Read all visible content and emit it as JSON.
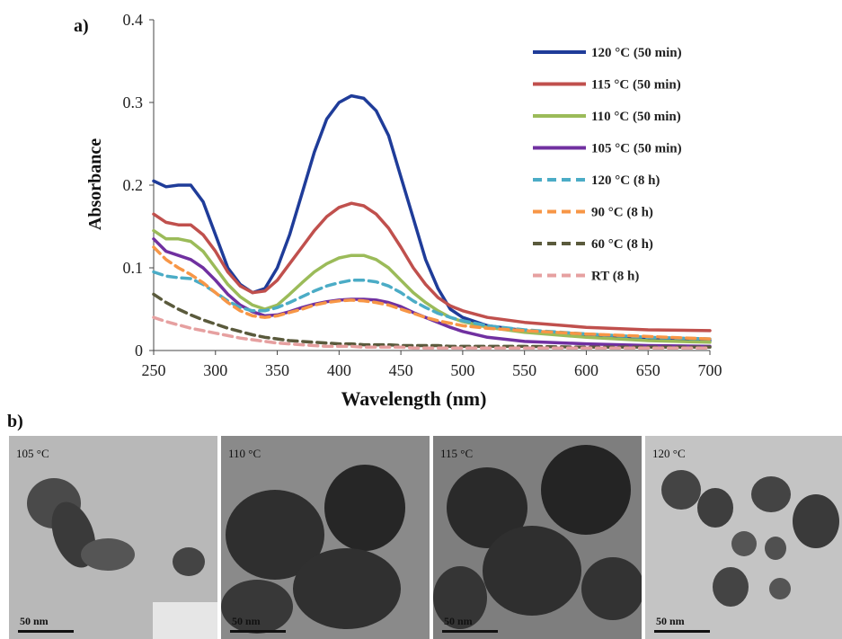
{
  "panel_a_label": "a)",
  "panel_b_label": "b)",
  "chart_data": {
    "type": "line",
    "title": "",
    "xlabel": "Wavelength (nm)",
    "ylabel": "Absorbance",
    "xlim": [
      250,
      700
    ],
    "ylim": [
      0,
      0.4
    ],
    "xticks": [
      250,
      300,
      350,
      400,
      450,
      500,
      550,
      600,
      650,
      700
    ],
    "yticks": [
      0,
      0.1,
      0.2,
      0.3,
      0.4
    ],
    "ytick_labels": [
      "0",
      "0.1",
      "0.2",
      "0.3",
      "0.4"
    ],
    "grid": false,
    "legend_position": "top-right",
    "x": [
      250,
      260,
      270,
      280,
      290,
      300,
      310,
      320,
      330,
      340,
      350,
      360,
      370,
      380,
      390,
      400,
      410,
      420,
      430,
      440,
      450,
      460,
      470,
      480,
      490,
      500,
      520,
      550,
      600,
      650,
      700
    ],
    "series": [
      {
        "name": "120 °C (50 min)",
        "color": "#1f3c99",
        "dash": "solid",
        "values": [
          0.205,
          0.198,
          0.2,
          0.2,
          0.18,
          0.14,
          0.1,
          0.08,
          0.07,
          0.075,
          0.1,
          0.14,
          0.19,
          0.24,
          0.28,
          0.3,
          0.308,
          0.305,
          0.29,
          0.26,
          0.21,
          0.16,
          0.11,
          0.075,
          0.05,
          0.04,
          0.03,
          0.024,
          0.018,
          0.014,
          0.012
        ]
      },
      {
        "name": "115 °C (50 min)",
        "color": "#c0504d",
        "dash": "solid",
        "values": [
          0.165,
          0.155,
          0.152,
          0.152,
          0.14,
          0.12,
          0.095,
          0.078,
          0.07,
          0.072,
          0.085,
          0.105,
          0.125,
          0.145,
          0.162,
          0.173,
          0.178,
          0.175,
          0.165,
          0.148,
          0.125,
          0.1,
          0.08,
          0.064,
          0.054,
          0.048,
          0.04,
          0.034,
          0.028,
          0.025,
          0.024
        ]
      },
      {
        "name": "110 °C (50 min)",
        "color": "#9bbb59",
        "dash": "solid",
        "values": [
          0.145,
          0.135,
          0.135,
          0.132,
          0.12,
          0.1,
          0.08,
          0.065,
          0.055,
          0.05,
          0.055,
          0.068,
          0.082,
          0.095,
          0.105,
          0.112,
          0.115,
          0.115,
          0.11,
          0.1,
          0.085,
          0.07,
          0.058,
          0.048,
          0.04,
          0.035,
          0.028,
          0.022,
          0.016,
          0.012,
          0.01
        ]
      },
      {
        "name": "105 °C (50 min)",
        "color": "#7030a0",
        "dash": "solid",
        "values": [
          0.135,
          0.12,
          0.115,
          0.11,
          0.1,
          0.085,
          0.068,
          0.055,
          0.047,
          0.042,
          0.043,
          0.047,
          0.052,
          0.056,
          0.059,
          0.061,
          0.062,
          0.062,
          0.061,
          0.058,
          0.053,
          0.046,
          0.04,
          0.034,
          0.028,
          0.023,
          0.016,
          0.011,
          0.008,
          0.006,
          0.005
        ]
      },
      {
        "name": "120 °C (8 h)",
        "color": "#4bacc6",
        "dash": "dashed",
        "values": [
          0.095,
          0.09,
          0.088,
          0.087,
          0.08,
          0.07,
          0.06,
          0.052,
          0.048,
          0.048,
          0.052,
          0.058,
          0.065,
          0.072,
          0.078,
          0.082,
          0.085,
          0.085,
          0.083,
          0.078,
          0.07,
          0.06,
          0.052,
          0.045,
          0.04,
          0.036,
          0.03,
          0.025,
          0.02,
          0.016,
          0.014
        ]
      },
      {
        "name": "90 °C (8 h)",
        "color": "#f79646",
        "dash": "dashed",
        "values": [
          0.125,
          0.11,
          0.1,
          0.092,
          0.082,
          0.07,
          0.058,
          0.048,
          0.042,
          0.04,
          0.042,
          0.046,
          0.05,
          0.055,
          0.058,
          0.06,
          0.061,
          0.06,
          0.058,
          0.055,
          0.05,
          0.045,
          0.04,
          0.036,
          0.033,
          0.03,
          0.027,
          0.024,
          0.02,
          0.017,
          0.014
        ]
      },
      {
        "name": "60 °C (8 h)",
        "color": "#5a5a3c",
        "dash": "dashed",
        "values": [
          0.068,
          0.058,
          0.05,
          0.043,
          0.037,
          0.032,
          0.027,
          0.023,
          0.019,
          0.016,
          0.014,
          0.012,
          0.011,
          0.01,
          0.009,
          0.008,
          0.008,
          0.007,
          0.007,
          0.007,
          0.006,
          0.006,
          0.006,
          0.006,
          0.005,
          0.005,
          0.005,
          0.005,
          0.004,
          0.004,
          0.004
        ]
      },
      {
        "name": "RT (8 h)",
        "color": "#e6a0a0",
        "dash": "dashed",
        "values": [
          0.04,
          0.035,
          0.031,
          0.027,
          0.024,
          0.021,
          0.018,
          0.015,
          0.013,
          0.011,
          0.009,
          0.008,
          0.007,
          0.006,
          0.005,
          0.005,
          0.005,
          0.004,
          0.004,
          0.004,
          0.004,
          0.003,
          0.003,
          0.003,
          0.003,
          0.003,
          0.003,
          0.003,
          0.003,
          0.003,
          0.003
        ]
      }
    ]
  },
  "tem_images": [
    {
      "temp": "105 °C",
      "scale": "50 nm"
    },
    {
      "temp": "110 °C",
      "scale": "50 nm"
    },
    {
      "temp": "115 °C",
      "scale": "50 nm"
    },
    {
      "temp": "120 °C",
      "scale": "50 nm"
    }
  ]
}
